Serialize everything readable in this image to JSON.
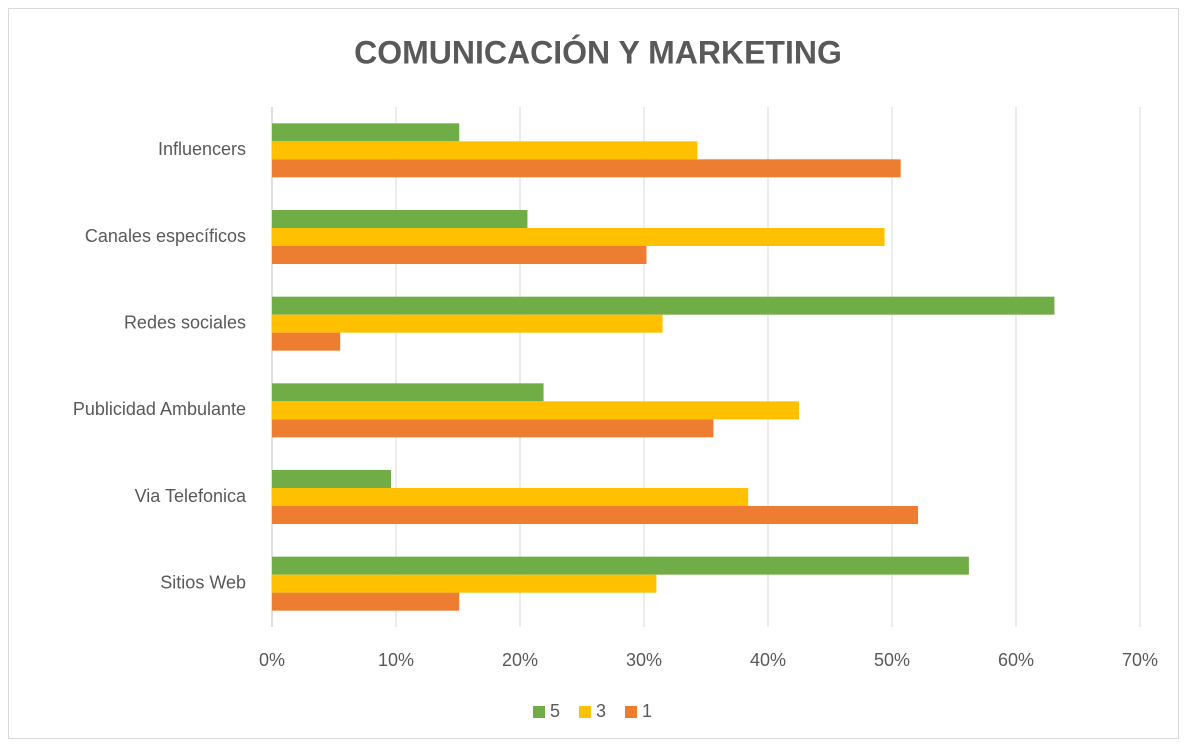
{
  "chart_data": {
    "type": "barh",
    "title": "COMUNICACIÓN Y MARKETING",
    "categories": [
      "Influencers",
      "Canales específicos",
      "Redes sociales",
      "Publicidad Ambulante",
      "Via Telefonica",
      "Sitios Web"
    ],
    "series": [
      {
        "name": "5",
        "color": "#70ad47",
        "values": [
          15.1,
          20.6,
          63.1,
          21.9,
          9.6,
          56.2
        ]
      },
      {
        "name": "3",
        "color": "#ffc000",
        "values": [
          34.3,
          49.4,
          31.5,
          42.5,
          38.4,
          31.0
        ]
      },
      {
        "name": "1",
        "color": "#ed7d31",
        "values": [
          50.7,
          30.2,
          5.5,
          35.6,
          52.1,
          15.1
        ]
      }
    ],
    "xlim": [
      0,
      70
    ],
    "xticks": [
      {
        "value": 0,
        "label": "0%"
      },
      {
        "value": 10,
        "label": "10%"
      },
      {
        "value": 20,
        "label": "20%"
      },
      {
        "value": 30,
        "label": "30%"
      },
      {
        "value": 40,
        "label": "40%"
      },
      {
        "value": 50,
        "label": "50%"
      },
      {
        "value": 60,
        "label": "60%"
      },
      {
        "value": 70,
        "label": "70%"
      }
    ],
    "grid": true,
    "legend": "bottom"
  }
}
